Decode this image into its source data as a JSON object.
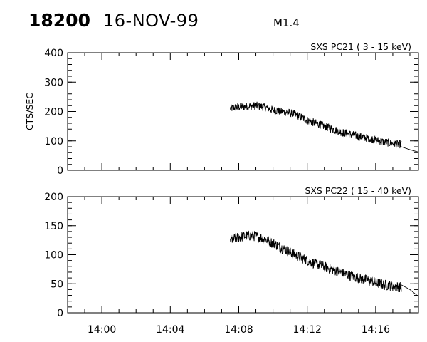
{
  "header": {
    "event_id": "18200",
    "date": "16-NOV-99",
    "flare_class": "M1.4"
  },
  "chart_data": [
    {
      "type": "line",
      "title": "SXS PC21  (  3 - 15 keV)",
      "ylabel": "CTS/SEC",
      "xlabel": "",
      "xlim": [
        "13:58",
        "14:18:30"
      ],
      "ylim": [
        0,
        400
      ],
      "yticks": [
        0,
        100,
        200,
        300,
        400
      ],
      "grid": false,
      "series": [
        {
          "x": [
            "14:07:30",
            "14:08",
            "14:08:30",
            "14:09",
            "14:09:30",
            "14:10",
            "14:10:30",
            "14:11",
            "14:11:30",
            "14:12",
            "14:12:30",
            "14:13",
            "14:13:30",
            "14:14",
            "14:14:30",
            "14:15",
            "14:15:30",
            "14:16",
            "14:16:30",
            "14:17",
            "14:17:30"
          ],
          "y": [
            210,
            215,
            218,
            220,
            215,
            205,
            200,
            195,
            185,
            170,
            160,
            150,
            140,
            130,
            123,
            115,
            110,
            103,
            96,
            92,
            88
          ],
          "noise": 14
        },
        {
          "x": [
            "14:17:30",
            "14:18",
            "14:18:30"
          ],
          "y": [
            80,
            70,
            62
          ],
          "style": "smooth"
        }
      ]
    },
    {
      "type": "line",
      "title": "SXS PC22  ( 15 - 40 keV)",
      "ylabel": "",
      "xlabel": "",
      "xlim": [
        "13:58",
        "14:18:30"
      ],
      "ylim": [
        0,
        200
      ],
      "yticks": [
        0,
        50,
        100,
        150,
        200
      ],
      "xticks": [
        "14:00",
        "14:04",
        "14:08",
        "14:12",
        "14:16"
      ],
      "grid": false,
      "series": [
        {
          "x": [
            "14:07:30",
            "14:08",
            "14:08:30",
            "14:09",
            "14:09:30",
            "14:10",
            "14:10:30",
            "14:11",
            "14:11:30",
            "14:12",
            "14:12:30",
            "14:13",
            "14:13:30",
            "14:14",
            "14:14:30",
            "14:15",
            "14:15:30",
            "14:16",
            "14:16:30",
            "14:17",
            "14:17:30"
          ],
          "y": [
            125,
            130,
            133,
            132,
            127,
            120,
            112,
            104,
            97,
            90,
            84,
            79,
            74,
            69,
            64,
            60,
            56,
            52,
            48,
            46,
            44
          ],
          "noise": 9
        },
        {
          "x": [
            "14:17:30",
            "14:18",
            "14:18:30"
          ],
          "y": [
            48,
            40,
            28
          ],
          "style": "smooth"
        }
      ]
    }
  ]
}
